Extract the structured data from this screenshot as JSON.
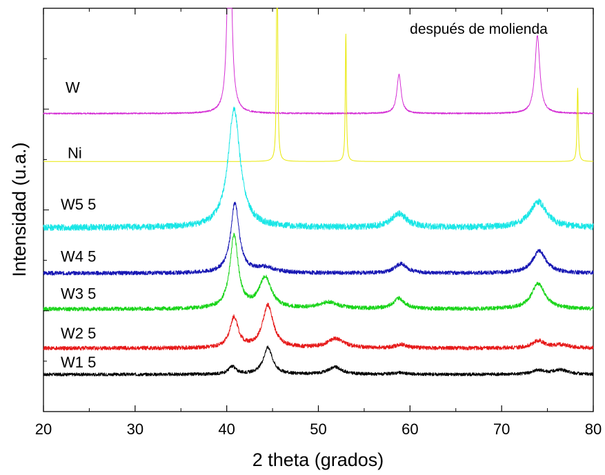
{
  "chart_data": {
    "type": "line",
    "title": "",
    "annotation": "después de molienda",
    "xlabel": "2 theta (grados)",
    "ylabel": "Intensidad (u.a.)",
    "xlim": [
      20,
      80
    ],
    "x_ticks": [
      20,
      30,
      40,
      50,
      60,
      70,
      80
    ],
    "y_tick_labels": "none",
    "grid": false,
    "legend": "none (series labelled inline at left)",
    "series": [
      {
        "name": "W",
        "color": "#d42ed4",
        "baseline": 0.739,
        "peaks": [
          [
            40.3,
            0.68,
            0.22
          ],
          [
            58.8,
            0.096,
            0.28
          ],
          [
            73.9,
            0.193,
            0.32
          ]
        ],
        "noise": 0.0018,
        "seed": 11
      },
      {
        "name": "Ni",
        "color": "#e8e800",
        "baseline": 0.62,
        "peaks": [
          [
            45.5,
            0.63,
            0.07
          ],
          [
            53.0,
            0.316,
            0.07
          ],
          [
            78.3,
            0.182,
            0.08
          ]
        ],
        "noise": 0.0,
        "seed": 12
      },
      {
        "name": "W5 5",
        "color": "#19e6e6",
        "baseline": 0.456,
        "peaks": [
          [
            40.8,
            0.293,
            0.8
          ],
          [
            58.8,
            0.034,
            1.0
          ],
          [
            74.0,
            0.064,
            1.1
          ]
        ],
        "noise": 0.008,
        "seed": 13
      },
      {
        "name": "W4 5",
        "color": "#1717b3",
        "baseline": 0.343,
        "peaks": [
          [
            40.9,
            0.174,
            0.55
          ],
          [
            44.2,
            0.013,
            1.3
          ],
          [
            59.0,
            0.023,
            0.8
          ],
          [
            74.1,
            0.055,
            0.9
          ]
        ],
        "noise": 0.005,
        "seed": 14
      },
      {
        "name": "W3 5",
        "color": "#19d419",
        "baseline": 0.254,
        "peaks": [
          [
            40.8,
            0.18,
            0.55
          ],
          [
            44.2,
            0.077,
            0.8
          ],
          [
            51.1,
            0.016,
            1.3
          ],
          [
            58.8,
            0.026,
            0.75
          ],
          [
            74.0,
            0.063,
            0.9
          ]
        ],
        "noise": 0.005,
        "seed": 15
      },
      {
        "name": "W2 5",
        "color": "#e61919",
        "baseline": 0.157,
        "peaks": [
          [
            40.8,
            0.075,
            0.55
          ],
          [
            44.5,
            0.106,
            0.7
          ],
          [
            51.9,
            0.023,
            1.1
          ],
          [
            59.0,
            0.009,
            0.7
          ],
          [
            74.0,
            0.018,
            0.8
          ],
          [
            76.5,
            0.008,
            1.0
          ]
        ],
        "noise": 0.005,
        "seed": 16
      },
      {
        "name": "W1 5",
        "color": "#000000",
        "baseline": 0.092,
        "peaks": [
          [
            40.6,
            0.019,
            0.5
          ],
          [
            44.5,
            0.067,
            0.6
          ],
          [
            51.8,
            0.018,
            0.9
          ],
          [
            58.9,
            0.004,
            0.8
          ],
          [
            74.0,
            0.01,
            0.8
          ],
          [
            76.4,
            0.011,
            1.0
          ]
        ],
        "noise": 0.004,
        "seed": 17
      }
    ]
  }
}
